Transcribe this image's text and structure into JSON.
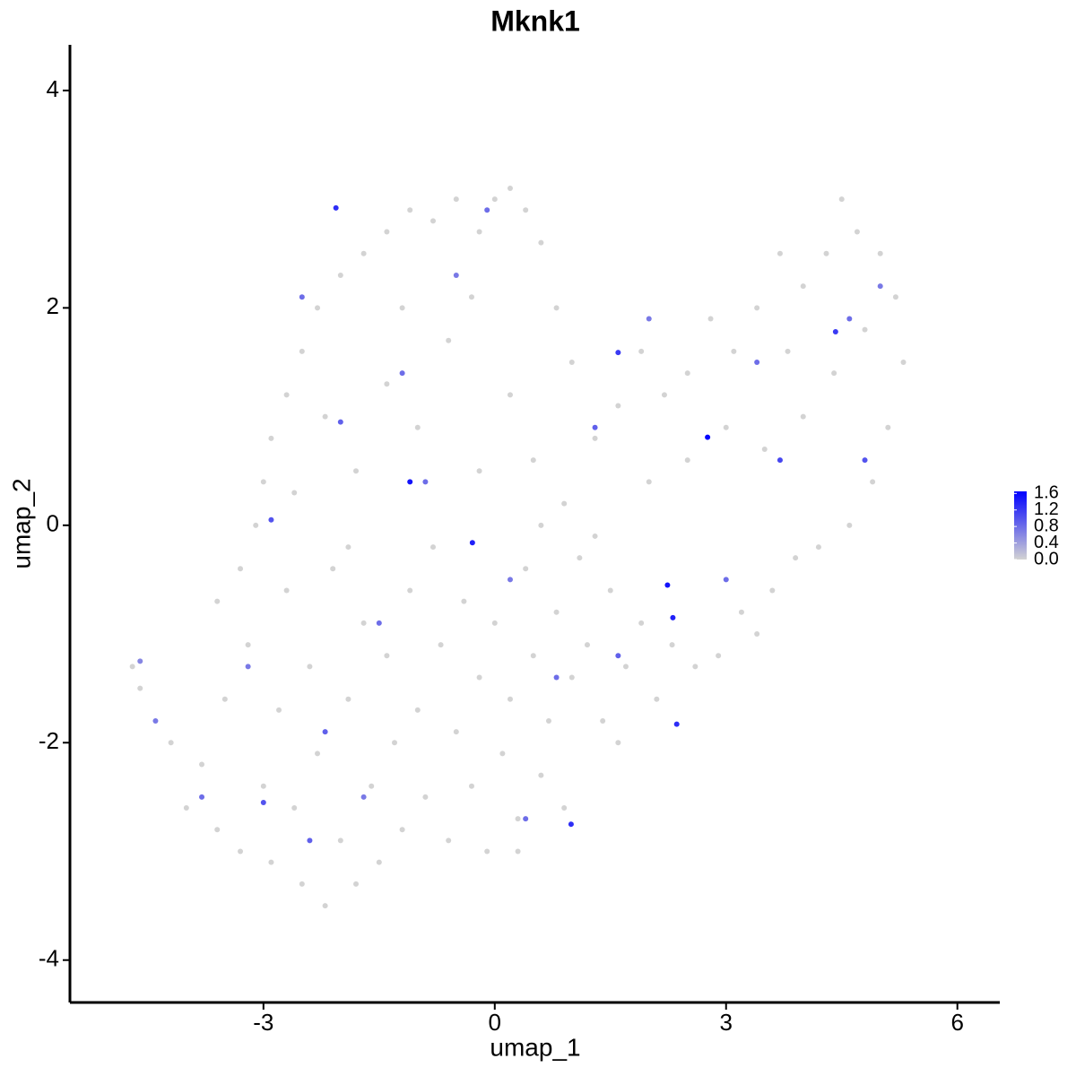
{
  "chart_data": {
    "type": "scatter",
    "title": "Mknk1",
    "x_label": "umap_1",
    "y_label": "umap_2",
    "xlim": [
      -5.51,
      6.55
    ],
    "ylim": [
      -4.39,
      4.42
    ],
    "xticks": [
      -3,
      0,
      3,
      6
    ],
    "yticks": [
      -4,
      -2,
      0,
      2,
      4
    ],
    "colors": [
      "#d3d3d3",
      "#0000ff"
    ],
    "clim": [
      0,
      1.65
    ],
    "cticks": [
      {
        "value": 0,
        "label": "0.0"
      },
      0.4,
      0.8,
      1.2,
      1.6
    ],
    "x": [
      -4.7,
      -4.6,
      -4.2,
      -4.0,
      -3.8,
      -3.6,
      -3.5,
      -3.3,
      -3.2,
      -3.0,
      -2.9,
      -2.8,
      -2.7,
      -2.6,
      -2.5,
      -2.4,
      -2.3,
      -2.2,
      -2.1,
      -2.0,
      -1.9,
      -1.8,
      -1.7,
      -1.6,
      -1.5,
      -1.4,
      -1.3,
      -1.2,
      -1.1,
      -1.0,
      -0.9,
      -0.8,
      -0.7,
      -0.6,
      -0.5,
      -0.4,
      -0.3,
      -0.2,
      -0.1,
      0.0,
      0.1,
      0.2,
      0.3,
      0.4,
      0.5,
      0.6,
      0.7,
      0.8,
      0.9,
      1.0,
      1.1,
      1.2,
      1.4,
      1.5,
      1.7,
      1.9,
      2.1,
      2.3,
      2.6,
      2.9,
      3.2,
      3.4,
      3.6,
      3.9,
      4.2,
      4.6,
      4.9,
      5.1,
      5.3,
      5.2,
      5.0,
      4.7,
      4.5,
      4.3,
      4.0,
      3.7,
      3.4,
      3.1,
      2.8,
      2.5,
      2.2,
      1.9,
      1.6,
      1.3,
      1.0,
      0.8,
      0.6,
      0.4,
      0.2,
      0.0,
      -0.2,
      -0.5,
      -0.8,
      -1.1,
      -1.4,
      -1.7,
      -2.0,
      -2.3,
      -2.5,
      -2.7,
      -2.9,
      -3.0,
      -3.1,
      -3.3,
      -3.6,
      -2.2,
      -1.8,
      -1.4,
      -1.0,
      -0.6,
      -0.2,
      0.2,
      0.5,
      0.9,
      1.3,
      2.0,
      2.5,
      3.0,
      3.5,
      4.0,
      4.4,
      4.8,
      3.8,
      -0.3,
      -1.2,
      -1.9,
      -2.6,
      0.6,
      1.6,
      0.3,
      -4.6,
      -4.4,
      -3.8,
      -3.0,
      -2.4,
      -2.9,
      -2.0,
      -2.5,
      -1.2,
      -0.5,
      0.4,
      1.3,
      4.6,
      5.0,
      4.8,
      3.7,
      3.0,
      1.6,
      0.2,
      -1.5,
      -2.2,
      -3.2,
      -0.9,
      2.0,
      3.4,
      -0.1,
      -1.7,
      0.8,
      2.76,
      -1.1,
      2.24,
      0.99,
      -0.29,
      -2.06,
      1.6,
      4.42,
      2.31,
      2.36
    ],
    "y": [
      -1.3,
      -1.5,
      -2.0,
      -2.6,
      -2.2,
      -2.8,
      -1.6,
      -3.0,
      -1.1,
      -2.4,
      -3.1,
      -1.7,
      -0.6,
      -2.6,
      -3.3,
      -1.3,
      -2.1,
      -3.5,
      -0.4,
      -2.9,
      -1.6,
      -3.3,
      -0.9,
      -2.4,
      -3.1,
      -1.2,
      -2.0,
      -2.8,
      -0.6,
      -1.7,
      -2.5,
      -0.2,
      -1.1,
      -2.9,
      -1.9,
      -0.7,
      -2.4,
      -1.4,
      -3.0,
      -0.9,
      -2.1,
      -1.6,
      -2.7,
      -0.4,
      -1.2,
      -2.3,
      -1.8,
      -0.8,
      -2.6,
      -1.4,
      -0.3,
      -1.1,
      -1.8,
      -0.6,
      -1.3,
      -0.9,
      -1.6,
      -1.1,
      -1.3,
      -1.2,
      -0.8,
      -1.0,
      -0.6,
      -0.3,
      -0.2,
      0.0,
      0.4,
      0.9,
      1.5,
      2.1,
      2.5,
      2.7,
      3.0,
      2.5,
      2.2,
      2.5,
      2.0,
      1.6,
      1.9,
      1.4,
      1.2,
      1.6,
      1.1,
      0.8,
      1.5,
      2.0,
      2.6,
      2.9,
      3.1,
      3.0,
      2.7,
      3.0,
      2.8,
      2.9,
      2.7,
      2.5,
      2.3,
      2.0,
      1.6,
      1.2,
      0.8,
      0.4,
      0.0,
      -0.4,
      -0.7,
      1.0,
      0.5,
      1.3,
      0.9,
      1.7,
      0.5,
      1.2,
      0.6,
      0.2,
      -0.1,
      0.4,
      0.6,
      0.9,
      0.7,
      1.0,
      1.4,
      1.8,
      1.6,
      2.1,
      2.0,
      -0.2,
      0.3,
      0.0,
      -2.0,
      -3.0,
      -1.25,
      -1.8,
      -2.5,
      -2.55,
      -2.9,
      0.05,
      0.95,
      2.1,
      1.4,
      2.3,
      -2.7,
      0.9,
      1.9,
      2.2,
      0.6,
      0.6,
      -0.5,
      -1.2,
      -0.5,
      -0.9,
      -1.9,
      -1.3,
      0.4,
      1.9,
      1.5,
      2.9,
      -2.5,
      -1.4,
      0.81,
      0.4,
      -0.55,
      -2.75,
      -0.16,
      2.92,
      1.59,
      1.78,
      -0.85,
      -1.83
    ],
    "values": [
      0,
      0,
      0,
      0,
      0,
      0,
      0,
      0,
      0,
      0,
      0,
      0,
      0,
      0,
      0,
      0,
      0,
      0,
      0,
      0,
      0,
      0,
      0,
      0,
      0,
      0,
      0,
      0,
      0,
      0,
      0,
      0,
      0,
      0,
      0,
      0,
      0,
      0,
      0,
      0,
      0,
      0,
      0,
      0,
      0,
      0,
      0,
      0,
      0,
      0,
      0,
      0,
      0,
      0,
      0,
      0,
      0,
      0,
      0,
      0,
      0,
      0,
      0,
      0,
      0,
      0,
      0,
      0,
      0,
      0,
      0,
      0,
      0,
      0,
      0,
      0,
      0,
      0,
      0,
      0,
      0,
      0,
      0,
      0,
      0,
      0,
      0,
      0,
      0,
      0,
      0,
      0,
      0,
      0,
      0,
      0,
      0,
      0,
      0,
      0,
      0,
      0,
      0,
      0,
      0,
      0,
      0,
      0,
      0,
      0,
      0,
      0,
      0,
      0,
      0,
      0,
      0,
      0,
      0,
      0,
      0,
      0,
      0,
      0,
      0,
      0,
      0,
      0,
      0,
      0,
      0.6,
      0.7,
      0.8,
      1.0,
      0.9,
      1.0,
      0.9,
      0.8,
      0.8,
      0.7,
      0.8,
      0.9,
      0.8,
      0.7,
      1.0,
      1.1,
      0.8,
      0.9,
      0.7,
      0.8,
      0.9,
      0.7,
      0.8,
      0.7,
      0.8,
      0.8,
      0.7,
      0.8,
      1.6,
      1.5,
      1.5,
      1.3,
      1.4,
      1.3,
      1.2,
      1.2,
      1.4,
      1.3
    ]
  }
}
